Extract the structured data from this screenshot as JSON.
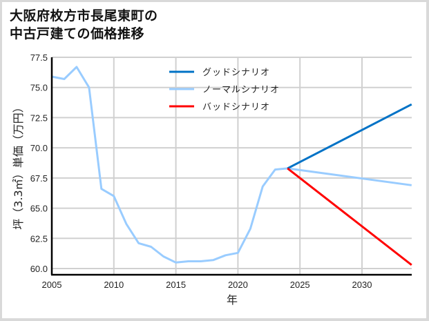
{
  "chart_data": {
    "type": "line",
    "title": "大阪府枚方市長尾東町の\n中古戸建ての価格推移",
    "title_lines": [
      "大阪府枚方市長尾東町の",
      "中古戸建ての価格推移"
    ],
    "xlabel": "年",
    "ylabel": "坪（3.3㎡）単価（万円）",
    "xlim": [
      2005,
      2034
    ],
    "ylim": [
      59.5,
      77.5
    ],
    "xticks": [
      2005,
      2010,
      2015,
      2020,
      2025,
      2030
    ],
    "xtick_labels": [
      "2005",
      "2010",
      "2015",
      "2020",
      "2025",
      "2030"
    ],
    "yticks": [
      60.0,
      62.5,
      65.0,
      67.5,
      70.0,
      72.5,
      75.0,
      77.5
    ],
    "ytick_labels": [
      "60.0",
      "62.5",
      "65.0",
      "67.5",
      "70.0",
      "72.5",
      "75.0",
      "77.5"
    ],
    "grid": true,
    "legend_position": "upper center",
    "series": [
      {
        "name": "グッドシナリオ",
        "color": "#0072c6",
        "x": [
          2024,
          2034
        ],
        "values": [
          68.3,
          73.6
        ]
      },
      {
        "name": "ノーマルシナリオ",
        "color": "#99ccff",
        "x": [
          2005,
          2006,
          2007,
          2008,
          2009,
          2010,
          2011,
          2012,
          2013,
          2014,
          2015,
          2016,
          2017,
          2018,
          2019,
          2020,
          2021,
          2022,
          2023,
          2024,
          2034
        ],
        "values": [
          75.9,
          75.7,
          76.7,
          75.0,
          66.6,
          66.0,
          63.7,
          62.1,
          61.8,
          61.0,
          60.5,
          60.6,
          60.6,
          60.7,
          61.1,
          61.3,
          63.3,
          66.8,
          68.2,
          68.3,
          66.9
        ]
      },
      {
        "name": "バッドシナリオ",
        "color": "#ff0000",
        "x": [
          2024,
          2034
        ],
        "values": [
          68.3,
          60.3
        ]
      }
    ]
  }
}
